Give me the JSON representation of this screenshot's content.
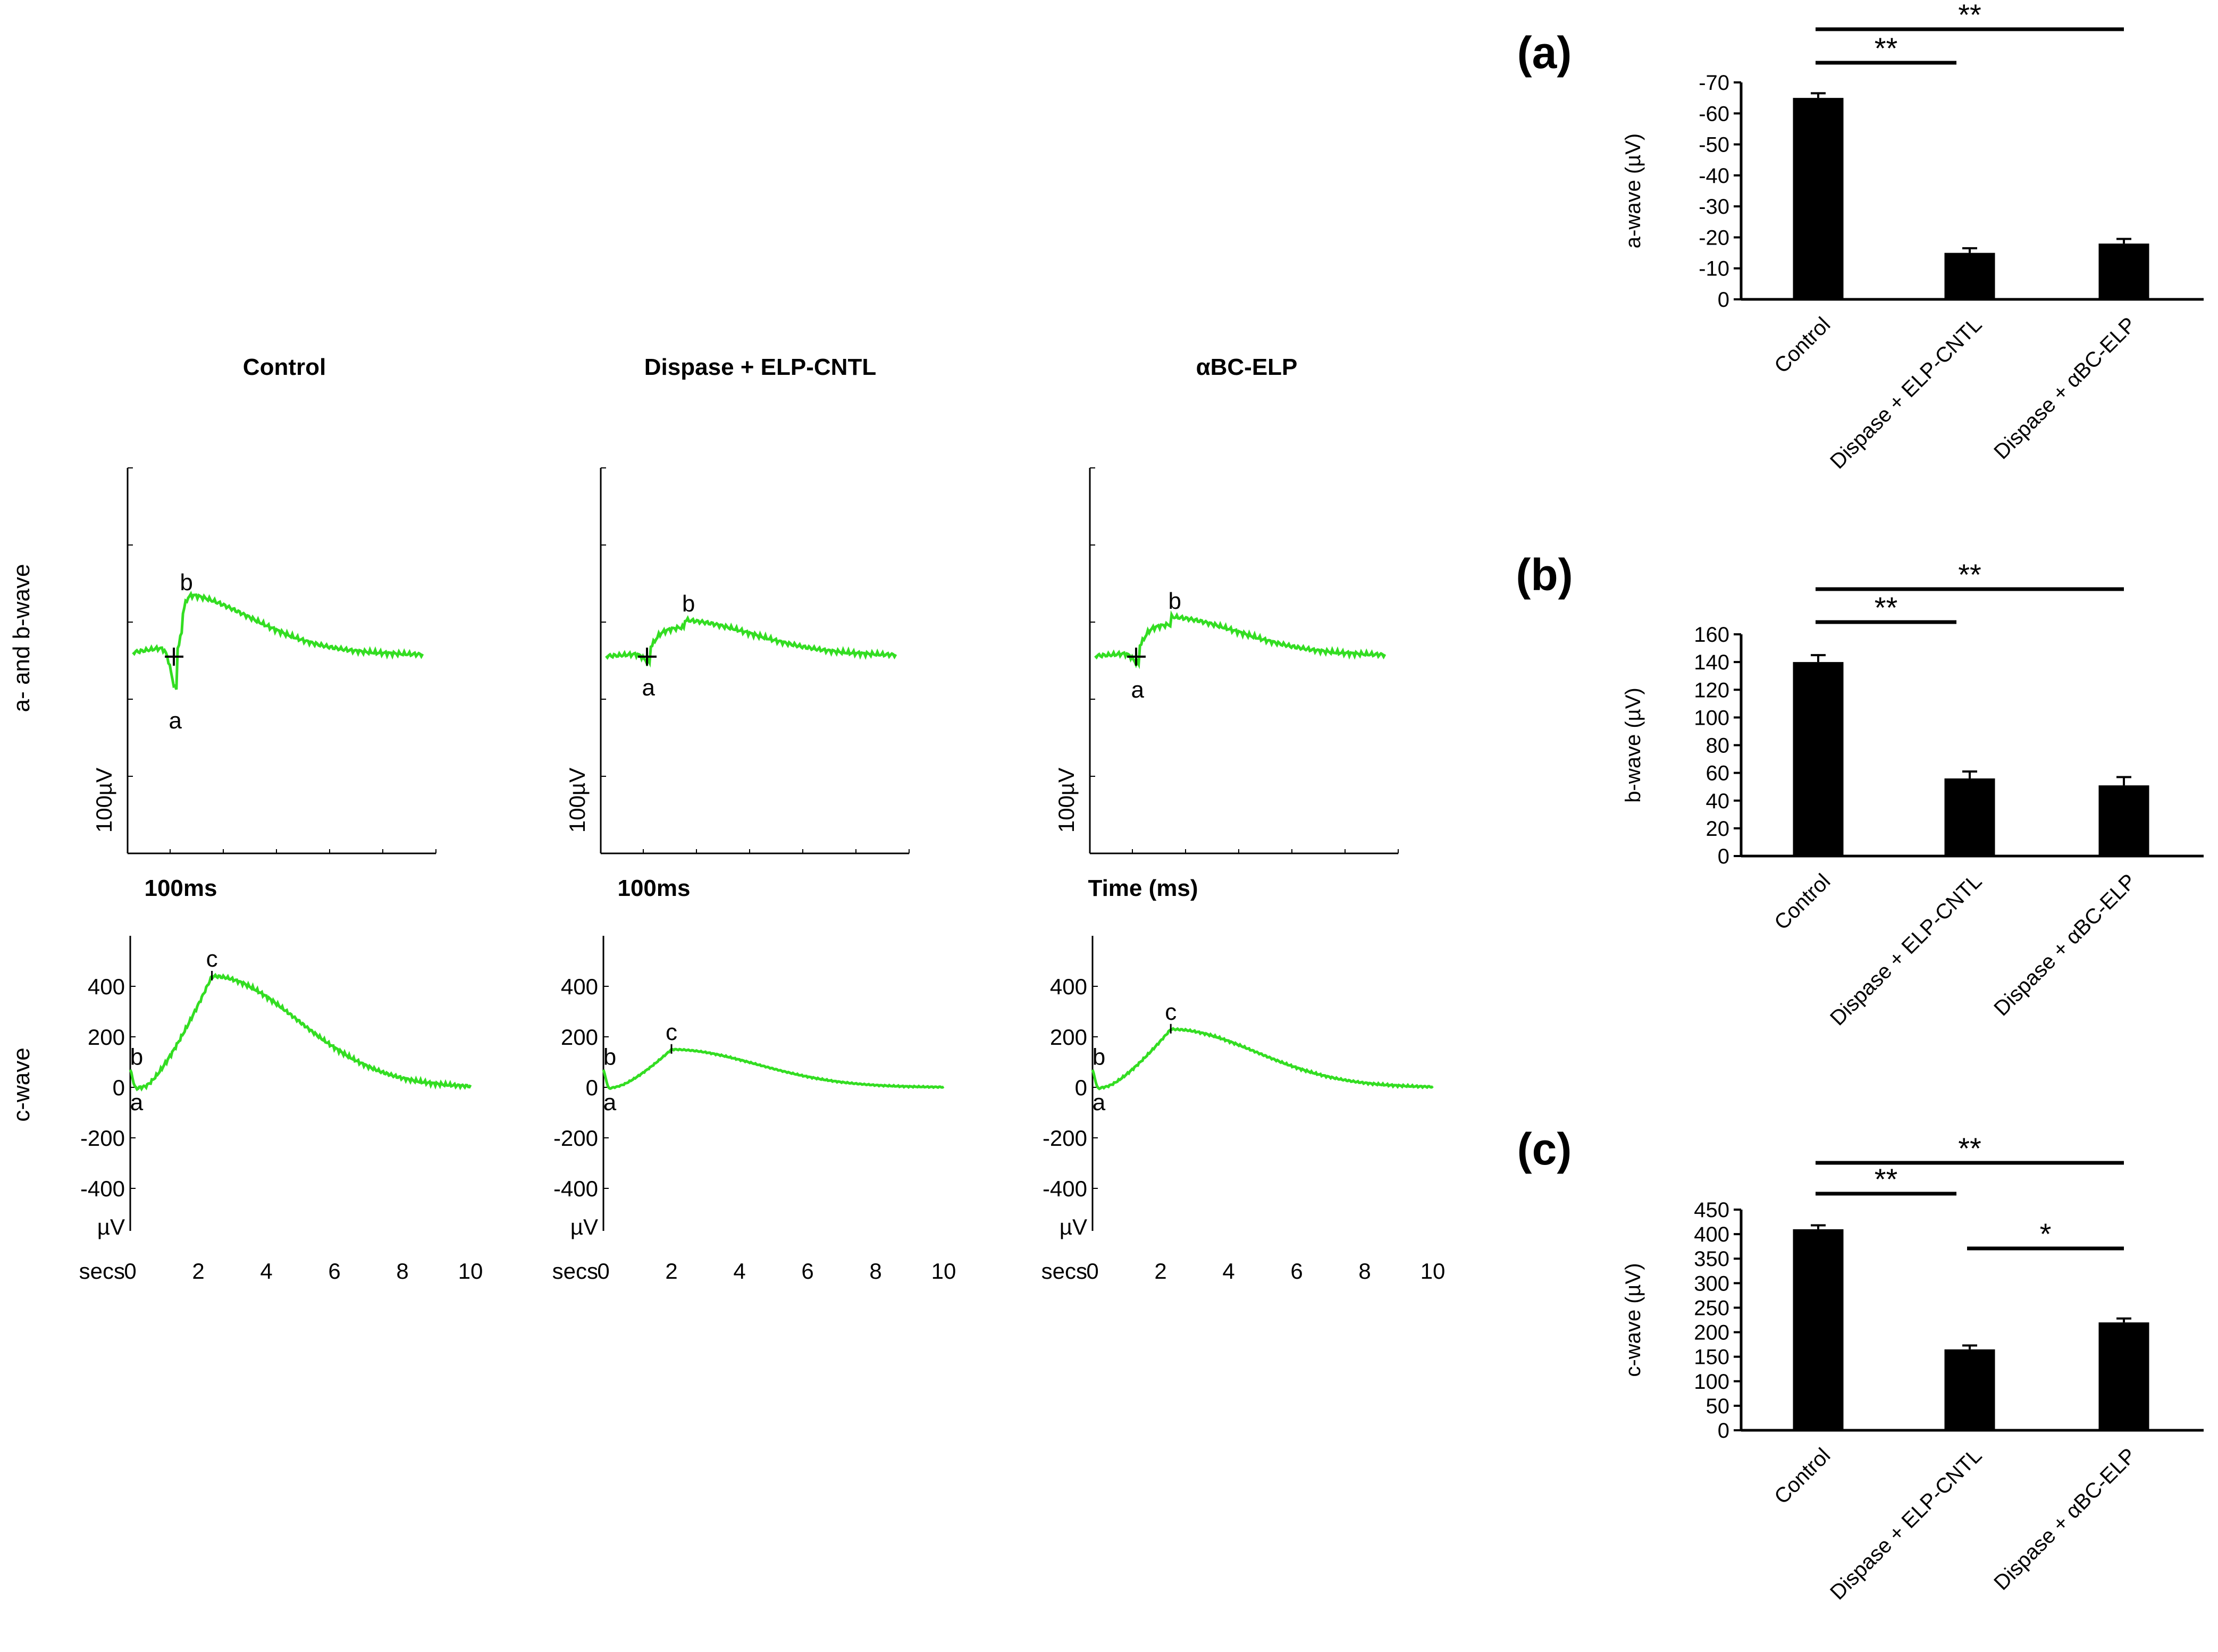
{
  "colors": {
    "trace": "#33dd22",
    "bar": "#000000",
    "axis": "#000000"
  },
  "traces": {
    "columns": [
      {
        "title": "Control",
        "ab_scale": "100µV",
        "ab_time": "100ms",
        "a_label": "a",
        "b_label": "b",
        "c_label": "c",
        "c_b_label": "b",
        "c_a_label": "a"
      },
      {
        "title": "Dispase + ELP-CNTL",
        "ab_scale": "100µV",
        "ab_time": "100ms",
        "a_label": "a",
        "b_label": "b",
        "c_label": "c",
        "c_b_label": "b",
        "c_a_label": "a"
      },
      {
        "title": "αBC-ELP",
        "ab_scale": "100µV",
        "ab_time": "Time (ms)",
        "a_label": "a",
        "b_label": "b",
        "c_label": "c",
        "c_b_label": "b",
        "c_a_label": "a"
      }
    ],
    "ab_row_label": "a- and b-wave",
    "c_row_label": "c-wave",
    "c_yticks": [
      "400",
      "200",
      "0",
      "-200",
      "-400"
    ],
    "c_unit": "µV",
    "c_xticks": [
      "0",
      "2",
      "4",
      "6",
      "8",
      "10"
    ],
    "c_xunit": "secs"
  },
  "chart_data": [
    {
      "type": "bar",
      "panel": "(a)",
      "ylabel": "a-wave (µV)",
      "categories": [
        "Control",
        "Dispase + ELP-CNTL",
        "Dispase + αBC-ELP"
      ],
      "values": [
        -65,
        -15,
        -18
      ],
      "errors": [
        1.5,
        1.5,
        1.5
      ],
      "ylim": [
        0,
        -70
      ],
      "yticks": [
        "-70",
        "-60",
        "-50",
        "-40",
        "-30",
        "-20",
        "-10",
        "0"
      ],
      "significance": [
        {
          "from": 0,
          "to": 1,
          "label": "**"
        },
        {
          "from": 0,
          "to": 2,
          "label": "**"
        }
      ]
    },
    {
      "type": "bar",
      "panel": "(b)",
      "ylabel": "b-wave (µV)",
      "categories": [
        "Control",
        "Dispase + ELP-CNTL",
        "Dispase + αBC-ELP"
      ],
      "values": [
        140,
        56,
        51
      ],
      "errors": [
        5,
        5,
        6
      ],
      "ylim": [
        0,
        160
      ],
      "yticks": [
        "160",
        "140",
        "120",
        "100",
        "80",
        "60",
        "40",
        "20",
        "0"
      ],
      "significance": [
        {
          "from": 0,
          "to": 1,
          "label": "**"
        },
        {
          "from": 0,
          "to": 2,
          "label": "**"
        }
      ]
    },
    {
      "type": "bar",
      "panel": "(c)",
      "ylabel": "c-wave (µV)",
      "categories": [
        "Control",
        "Dispase + ELP-CNTL",
        "Dispase + αBC-ELP"
      ],
      "values": [
        410,
        165,
        220
      ],
      "errors": [
        8,
        8,
        8
      ],
      "ylim": [
        0,
        450
      ],
      "yticks": [
        "450",
        "400",
        "350",
        "300",
        "250",
        "200",
        "150",
        "100",
        "50",
        "0"
      ],
      "significance": [
        {
          "from": 0,
          "to": 1,
          "label": "**"
        },
        {
          "from": 0,
          "to": 2,
          "label": "**"
        },
        {
          "from": 1,
          "to": 2,
          "label": "*"
        }
      ]
    }
  ]
}
